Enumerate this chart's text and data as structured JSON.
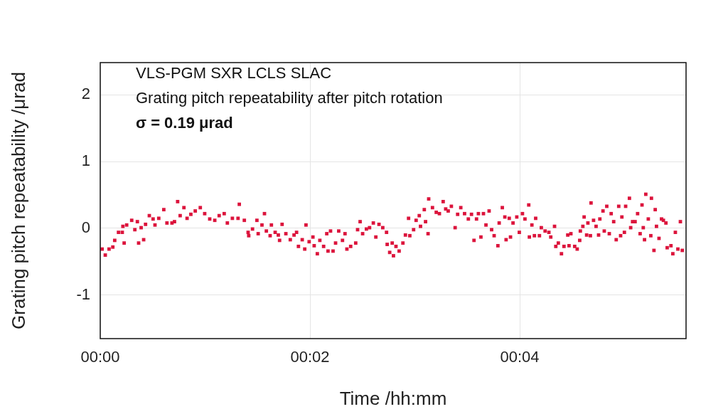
{
  "chart_data": {
    "type": "scatter",
    "xlabel": "Time /hh:mm",
    "ylabel": "Grating pitch repeatability /μrad",
    "annotations": [
      "VLS-PGM SXR LCLS SLAC",
      "Grating pitch repeatability after pitch rotation",
      "σ = 0.19 μrad"
    ],
    "xlim": [
      0,
      0.0931
    ],
    "ylim": [
      -1.65,
      2.48
    ],
    "xticks": [
      {
        "value": 0,
        "label": "00:00"
      },
      {
        "value": 0.033333,
        "label": "00:02"
      },
      {
        "value": 0.066667,
        "label": "00:04"
      }
    ],
    "yticks": [
      -1,
      0,
      1,
      2
    ],
    "grid": true,
    "legend": false,
    "marker": "square",
    "series": [
      {
        "color": "#dc143c",
        "x": [
          0.0003,
          0.0008,
          0.0014,
          0.002,
          0.0023,
          0.0029,
          0.0035,
          0.0038,
          0.0036,
          0.0042,
          0.005,
          0.0055,
          0.0059,
          0.0061,
          0.0065,
          0.0069,
          0.0072,
          0.0078,
          0.0084,
          0.0087,
          0.0093,
          0.0101,
          0.0106,
          0.0114,
          0.0118,
          0.0123,
          0.0127,
          0.0133,
          0.0138,
          0.0144,
          0.0151,
          0.0159,
          0.0166,
          0.0174,
          0.0182,
          0.0189,
          0.0197,
          0.0202,
          0.021,
          0.0219,
          0.0221,
          0.0229,
          0.0235,
          0.0236,
          0.0242,
          0.0249,
          0.0251,
          0.0257,
          0.0261,
          0.0264,
          0.027,
          0.0272,
          0.0278,
          0.0283,
          0.0285,
          0.0289,
          0.0295,
          0.0302,
          0.0308,
          0.0312,
          0.0315,
          0.0321,
          0.0325,
          0.0327,
          0.0332,
          0.0338,
          0.034,
          0.0345,
          0.0349,
          0.0355,
          0.036,
          0.0362,
          0.0366,
          0.037,
          0.0374,
          0.0379,
          0.0385,
          0.0389,
          0.0392,
          0.0398,
          0.0406,
          0.0409,
          0.0413,
          0.0417,
          0.0423,
          0.0428,
          0.0434,
          0.0438,
          0.0443,
          0.0449,
          0.0455,
          0.0456,
          0.046,
          0.0464,
          0.0466,
          0.047,
          0.0475,
          0.0481,
          0.0485,
          0.049,
          0.0492,
          0.0498,
          0.0502,
          0.0507,
          0.0509,
          0.0515,
          0.0517,
          0.0521,
          0.0522,
          0.0528,
          0.0534,
          0.0539,
          0.0545,
          0.0549,
          0.0553,
          0.0558,
          0.0564,
          0.0568,
          0.0573,
          0.0579,
          0.0585,
          0.059,
          0.0594,
          0.0598,
          0.0601,
          0.0605,
          0.0609,
          0.0613,
          0.0618,
          0.0622,
          0.0626,
          0.0632,
          0.0634,
          0.0639,
          0.0643,
          0.0645,
          0.065,
          0.0652,
          0.0656,
          0.0662,
          0.0666,
          0.0671,
          0.0675,
          0.0681,
          0.0682,
          0.0686,
          0.069,
          0.0692,
          0.0698,
          0.0701,
          0.0707,
          0.0713,
          0.0716,
          0.0722,
          0.0724,
          0.0728,
          0.0733,
          0.0737,
          0.0743,
          0.0745,
          0.0748,
          0.0754,
          0.0758,
          0.0762,
          0.0763,
          0.0767,
          0.0769,
          0.0773,
          0.0775,
          0.0779,
          0.078,
          0.0784,
          0.0788,
          0.0792,
          0.0794,
          0.0799,
          0.0801,
          0.0805,
          0.0809,
          0.0812,
          0.0816,
          0.082,
          0.0824,
          0.0827,
          0.0829,
          0.0833,
          0.0835,
          0.0841,
          0.0843,
          0.0846,
          0.085,
          0.0854,
          0.0858,
          0.0861,
          0.0863,
          0.0865,
          0.0867,
          0.0871,
          0.0875,
          0.0876,
          0.088,
          0.0882,
          0.0884,
          0.0888,
          0.0892,
          0.0895,
          0.0899,
          0.0901,
          0.0907,
          0.091,
          0.0914,
          0.0918,
          0.0922,
          0.0925
        ],
        "values": [
          -0.31,
          -0.4,
          -0.31,
          -0.28,
          -0.18,
          -0.06,
          -0.06,
          -0.22,
          0.03,
          0.05,
          0.12,
          -0.02,
          0.1,
          -0.22,
          0.01,
          -0.17,
          0.06,
          0.19,
          0.14,
          0.05,
          0.15,
          0.28,
          0.08,
          0.08,
          0.1,
          0.4,
          0.19,
          0.31,
          0.15,
          0.21,
          0.26,
          0.31,
          0.22,
          0.14,
          0.12,
          0.19,
          0.22,
          0.08,
          0.15,
          0.15,
          0.36,
          0.12,
          -0.06,
          -0.11,
          -0.01,
          0.12,
          -0.08,
          0.05,
          0.22,
          -0.04,
          -0.11,
          0.05,
          -0.06,
          -0.1,
          -0.18,
          0.06,
          -0.08,
          -0.17,
          -0.1,
          -0.06,
          -0.27,
          -0.17,
          -0.31,
          0.05,
          -0.2,
          -0.13,
          -0.26,
          -0.38,
          -0.18,
          -0.27,
          -0.08,
          -0.34,
          -0.04,
          -0.34,
          -0.22,
          -0.04,
          -0.18,
          -0.08,
          -0.31,
          -0.27,
          -0.22,
          -0.02,
          0.1,
          -0.08,
          -0.01,
          0.01,
          0.08,
          -0.13,
          0.06,
          0.01,
          -0.06,
          -0.24,
          -0.36,
          -0.22,
          -0.41,
          -0.27,
          -0.34,
          -0.22,
          -0.1,
          0.15,
          -0.11,
          -0.02,
          0.12,
          0.19,
          0.03,
          0.28,
          0.1,
          -0.08,
          0.44,
          0.31,
          0.24,
          0.22,
          0.4,
          0.29,
          0.26,
          0.33,
          0.01,
          0.21,
          0.31,
          0.22,
          0.14,
          0.21,
          -0.18,
          0.14,
          0.22,
          -0.13,
          0.22,
          0.05,
          0.26,
          -0.02,
          -0.11,
          -0.26,
          0.08,
          0.31,
          0.17,
          -0.17,
          0.15,
          -0.13,
          0.08,
          0.17,
          -0.06,
          0.22,
          0.14,
          0.35,
          -0.13,
          0.05,
          -0.11,
          0.15,
          -0.11,
          0.01,
          -0.04,
          -0.06,
          -0.13,
          0.03,
          -0.27,
          -0.22,
          -0.38,
          -0.27,
          -0.1,
          -0.26,
          -0.08,
          -0.27,
          -0.31,
          -0.18,
          -0.04,
          0.03,
          0.17,
          -0.1,
          0.08,
          -0.11,
          0.38,
          0.12,
          0.03,
          -0.1,
          0.14,
          0.26,
          -0.04,
          0.33,
          -0.08,
          0.22,
          0.1,
          -0.17,
          0.33,
          -0.11,
          0.17,
          -0.06,
          0.33,
          0.45,
          0.01,
          0.1,
          0.1,
          0.22,
          -0.08,
          0.35,
          0.01,
          -0.17,
          0.51,
          0.14,
          -0.11,
          0.45,
          -0.33,
          0.28,
          0.03,
          -0.15,
          0.14,
          0.12,
          0.08,
          -0.29,
          -0.26,
          -0.38,
          -0.06,
          -0.31,
          0.1,
          -0.33
        ]
      }
    ]
  }
}
